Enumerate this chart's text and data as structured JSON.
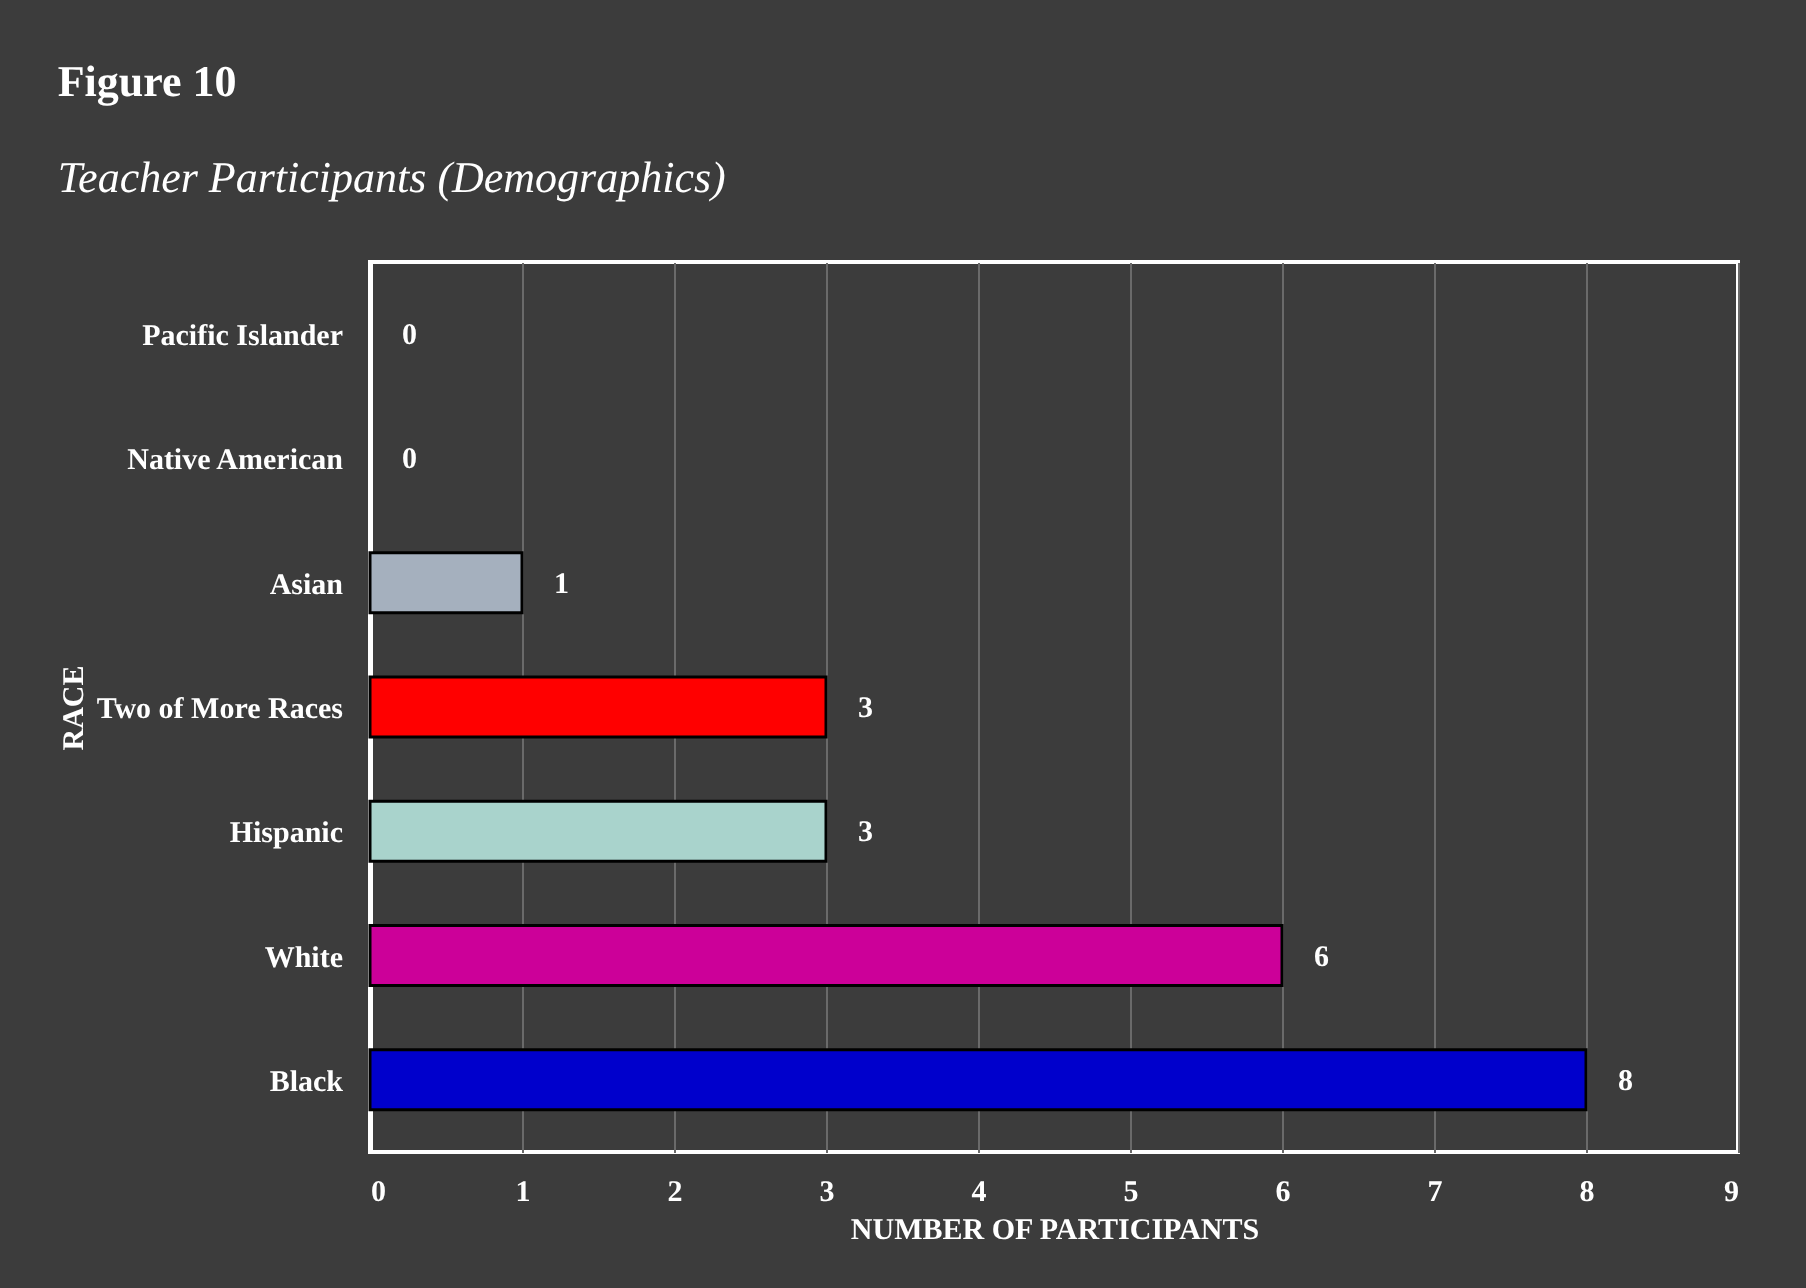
{
  "chart_data": {
    "type": "bar",
    "orientation": "horizontal",
    "title": "Figure 10",
    "subtitle": "Teacher Participants (Demographics)",
    "xlabel": "NUMBER OF PARTICIPANTS",
    "ylabel": "RACE",
    "categories": [
      "Pacific Islander",
      "Native American",
      "Asian",
      "Two of More Races",
      "Hispanic",
      "White",
      "Black"
    ],
    "values": [
      0,
      0,
      1,
      3,
      3,
      6,
      8
    ],
    "colors": [
      "#a5b0be",
      "#a5b0be",
      "#a5b0be",
      "#ff0000",
      "#a9d3cc",
      "#cc0099",
      "#0000cc"
    ],
    "xlim": [
      0,
      9
    ],
    "xticks": [
      0,
      1,
      2,
      3,
      4,
      5,
      6,
      7,
      8,
      9
    ],
    "grid": "x",
    "data_labels": true
  }
}
